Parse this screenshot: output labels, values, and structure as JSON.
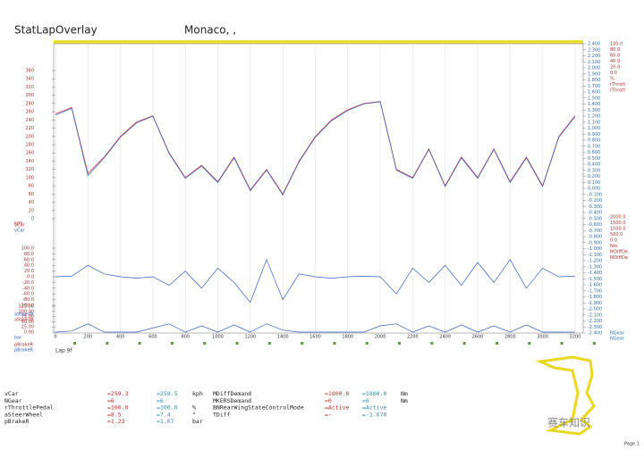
{
  "header": {
    "title": "StatLapOverlay",
    "venue": "Monaco, ,"
  },
  "chart_data": [
    {
      "type": "line",
      "y_unit": "kph",
      "xlim": [
        0,
        3250
      ],
      "xticks": [
        0,
        200,
        400,
        600,
        800,
        1000,
        1200,
        1400,
        1600,
        1800,
        2000,
        2200,
        2400,
        2600,
        2800,
        3000,
        3200
      ],
      "ylim": [
        0,
        360
      ],
      "yticks": [
        0,
        20,
        40,
        60,
        80,
        100,
        120,
        140,
        160,
        180,
        200,
        220,
        240,
        260,
        280,
        300,
        320,
        340,
        360
      ],
      "y2lim": [
        -2.4,
        2.4
      ],
      "y2ticks": [
        {
          "value": 2.4,
          "label": "2.400"
        },
        {
          "value": 2.3,
          "label": "2.300"
        },
        {
          "value": 2.2,
          "label": "2.200"
        },
        {
          "value": 2.1,
          "label": "2.100"
        },
        {
          "value": 2.0,
          "label": "2.000"
        },
        {
          "value": 1.9,
          "label": "1.900"
        },
        {
          "value": 1.8,
          "label": "1.800"
        },
        {
          "value": 1.7,
          "label": "1.700"
        },
        {
          "value": 1.6,
          "label": "1.600"
        },
        {
          "value": 1.5,
          "label": "1.500"
        },
        {
          "value": 1.4,
          "label": "1.400"
        },
        {
          "value": 1.3,
          "label": "1.300"
        },
        {
          "value": 1.2,
          "label": "1.200"
        },
        {
          "value": 1.1,
          "label": "1.100"
        },
        {
          "value": 1.0,
          "label": "1.000"
        },
        {
          "value": 0.9,
          "label": "0.900"
        },
        {
          "value": 0.8,
          "label": "0.800"
        },
        {
          "value": 0.7,
          "label": "0.700"
        },
        {
          "value": 0.6,
          "label": "0.600"
        },
        {
          "value": 0.5,
          "label": "0.500"
        },
        {
          "value": 0.4,
          "label": "0.400"
        },
        {
          "value": 0.3,
          "label": "0.300"
        },
        {
          "value": 0.2,
          "label": "0.200"
        },
        {
          "value": 0.1,
          "label": "0.100"
        },
        {
          "value": 0,
          "label": "0.000"
        },
        {
          "value": -0.1,
          "label": "-0.100"
        },
        {
          "value": -0.2,
          "label": "-0.200"
        },
        {
          "value": -0.3,
          "label": "-0.300"
        },
        {
          "value": -0.4,
          "label": "-0.400"
        },
        {
          "value": -0.5,
          "label": "-0.500"
        },
        {
          "value": -0.6,
          "label": "-0.600"
        },
        {
          "value": -0.7,
          "label": "-0.700"
        },
        {
          "value": -0.8,
          "label": "-0.800"
        },
        {
          "value": -0.9,
          "label": "-0.900"
        },
        {
          "value": -1.0,
          "label": "-1.000"
        },
        {
          "value": -1.1,
          "label": "-1.100"
        },
        {
          "value": -1.2,
          "label": "-1.200"
        },
        {
          "value": -1.3,
          "label": "-1.300"
        },
        {
          "value": -1.4,
          "label": "-1.400"
        },
        {
          "value": -1.5,
          "label": "-1.500"
        },
        {
          "value": -1.6,
          "label": "-1.600"
        },
        {
          "value": -1.7,
          "label": "-1.700"
        },
        {
          "value": -1.8,
          "label": "-1.800"
        },
        {
          "value": -1.9,
          "label": "-1.900"
        },
        {
          "value": -2.0,
          "label": "-2.000"
        },
        {
          "value": -2.1,
          "label": "-2.100"
        },
        {
          "value": -2.2,
          "label": "-2.200"
        },
        {
          "value": -2.3,
          "label": "-2.300"
        },
        {
          "value": -2.4,
          "label": "-2.400"
        }
      ],
      "x": [
        0,
        100,
        200,
        300,
        400,
        500,
        600,
        700,
        800,
        900,
        1000,
        1100,
        1200,
        1300,
        1400,
        1500,
        1600,
        1700,
        1800,
        1900,
        2000,
        2100,
        2200,
        2300,
        2400,
        2500,
        2600,
        2700,
        2800,
        2900,
        3000,
        3100,
        3200
      ],
      "series": [
        {
          "name": "vCar",
          "color": "#d03030",
          "values": [
            255,
            270,
            110,
            150,
            200,
            235,
            250,
            160,
            100,
            130,
            90,
            150,
            70,
            120,
            60,
            140,
            200,
            240,
            265,
            280,
            285,
            120,
            100,
            170,
            80,
            150,
            100,
            170,
            90,
            150,
            80,
            200,
            250
          ]
        },
        {
          "name": "vCar",
          "color": "#3060c0",
          "values": [
            252,
            268,
            105,
            148,
            198,
            233,
            249,
            158,
            98,
            128,
            88,
            148,
            68,
            118,
            58,
            138,
            198,
            238,
            263,
            279,
            284,
            118,
            98,
            168,
            78,
            148,
            98,
            168,
            88,
            148,
            78,
            198,
            248
          ]
        }
      ]
    },
    {
      "type": "line",
      "xlim": [
        0,
        3250
      ],
      "ylim": [
        -100,
        100
      ],
      "yticks": [
        {
          "value": 100,
          "label": "100.0"
        },
        {
          "value": 80,
          "label": "80.0"
        },
        {
          "value": 60,
          "label": "60.0"
        },
        {
          "value": 40,
          "label": "40.0"
        },
        {
          "value": 20,
          "label": "20.0"
        },
        {
          "value": 0,
          "label": "0.0"
        },
        {
          "value": -20,
          "label": "-20.0"
        },
        {
          "value": -40,
          "label": "-40.0"
        },
        {
          "value": -60,
          "label": "-60.0"
        },
        {
          "value": -80,
          "label": "-80.0"
        },
        {
          "value": -100,
          "label": "-100.0"
        }
      ],
      "x": [
        0,
        100,
        200,
        300,
        400,
        500,
        600,
        700,
        800,
        900,
        1000,
        1100,
        1200,
        1300,
        1400,
        1500,
        1600,
        1700,
        1800,
        1900,
        2000,
        2100,
        2200,
        2300,
        2400,
        2500,
        2600,
        2700,
        2800,
        2900,
        3000,
        3100,
        3200
      ],
      "series": [
        {
          "name": "aSteerW",
          "color": "#3060c0",
          "values": [
            0,
            2,
            40,
            10,
            0,
            -5,
            0,
            -30,
            20,
            -40,
            30,
            -20,
            -90,
            60,
            -80,
            10,
            0,
            -5,
            0,
            2,
            0,
            -60,
            30,
            -20,
            40,
            -30,
            50,
            -20,
            60,
            -40,
            30,
            0,
            2
          ]
        }
      ]
    },
    {
      "type": "line",
      "xlim": [
        0,
        3250
      ],
      "ylim": [
        0,
        125
      ],
      "yticks": [
        {
          "value": 125,
          "label": "125.00"
        },
        {
          "value": 100,
          "label": "100.00"
        },
        {
          "value": 75,
          "label": "75.00"
        },
        {
          "value": 50,
          "label": "50.00"
        },
        {
          "value": 25,
          "label": "25.00"
        },
        {
          "value": 0,
          "label": "0.00"
        }
      ],
      "x": [
        0,
        100,
        200,
        300,
        400,
        500,
        600,
        700,
        800,
        900,
        1000,
        1100,
        1200,
        1300,
        1400,
        1500,
        1600,
        1700,
        1800,
        1900,
        2000,
        2100,
        2200,
        2300,
        2400,
        2500,
        2600,
        2700,
        2800,
        2900,
        3000,
        3100,
        3200
      ],
      "series": [
        {
          "name": "pBrakeR",
          "color": "#3060c0",
          "values": [
            0,
            5,
            40,
            0,
            0,
            0,
            20,
            40,
            0,
            30,
            0,
            35,
            0,
            40,
            10,
            0,
            0,
            0,
            0,
            0,
            30,
            40,
            0,
            30,
            0,
            35,
            0,
            30,
            0,
            35,
            0,
            0,
            0
          ]
        }
      ]
    }
  ],
  "legend_left": [
    "vCar",
    "vCar",
    "kph",
    "aSteerW",
    "aSteerW",
    "bar",
    "pBrakeR",
    "pBrakeR"
  ],
  "throttle_axis": [
    "100.0",
    "80.0",
    "60.0",
    "40.0",
    "20.0",
    "0.0",
    "%",
    "rThrott",
    "rThrott"
  ],
  "nm_axis": [
    "2000.0",
    "1500.0",
    "1000.0",
    "500.0",
    "0.0",
    "Nm",
    "MDiffDe",
    "MDiffDe"
  ],
  "gear_axis": [
    "NGear",
    "NGear"
  ],
  "lap": "Lap 9f",
  "readout": {
    "left": [
      [
        "vCar",
        "=259.3",
        "=258.5",
        "kph"
      ],
      [
        "NGear",
        "=6",
        "=6"
      ],
      [
        "rThrottlePedal",
        "=100.0",
        "=100.0",
        "%"
      ],
      [
        "aSteerWheel",
        "=8.5",
        "=7.4",
        "°"
      ],
      [
        "pBrakeR",
        "=1.23",
        "=1.07",
        "bar"
      ]
    ],
    "right": [
      [
        "MDiffDemand",
        "=1800.0",
        "=1800.0",
        "Nm"
      ],
      [
        "MKERSDemand",
        "=0",
        "=0",
        "Nm"
      ],
      [
        "BNRearWingStateControlMode",
        "=Active",
        "=Active"
      ],
      [
        "TDiff",
        "=-",
        "=-1.670"
      ]
    ]
  },
  "watermark": "赛车知识",
  "page": "Page 1"
}
